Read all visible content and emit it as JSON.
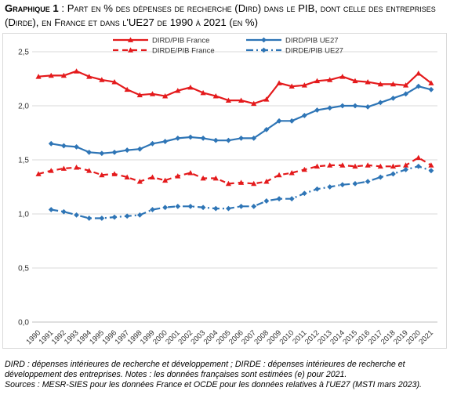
{
  "title": {
    "label": "Graphique 1",
    "separator": " : ",
    "text": "Part en % des dépenses de recherche (Dird) dans le PIB, dont celle des entreprises (Dirde), en France et dans l'UE27 de 1990 à 2021 (en %)"
  },
  "chart_data": {
    "type": "line",
    "x": [
      "1990",
      "1991",
      "1992",
      "1993",
      "1994",
      "1995",
      "1996",
      "1997",
      "1998",
      "1999",
      "2000",
      "2001",
      "2002",
      "2003",
      "2004",
      "2005",
      "2006",
      "2007",
      "2008",
      "2009",
      "2010",
      "2011",
      "2012",
      "2013",
      "2014",
      "2015",
      "2016",
      "2017",
      "2018",
      "2019",
      "2020",
      "2021"
    ],
    "ylim": [
      0,
      2.5
    ],
    "yticks": [
      "0,0",
      "0,5",
      "1,0",
      "1,5",
      "2,0",
      "2,5"
    ],
    "grid": true,
    "legend_position": "top",
    "series": [
      {
        "name": "DIRD/PIB France",
        "color": "#e41a1c",
        "style": "solid",
        "marker": "triangle",
        "values": [
          2.27,
          2.28,
          2.28,
          2.32,
          2.27,
          2.24,
          2.22,
          2.15,
          2.1,
          2.11,
          2.09,
          2.14,
          2.17,
          2.12,
          2.09,
          2.05,
          2.05,
          2.02,
          2.06,
          2.21,
          2.18,
          2.19,
          2.23,
          2.24,
          2.27,
          2.23,
          2.22,
          2.2,
          2.2,
          2.19,
          2.3,
          2.21
        ]
      },
      {
        "name": "DIRD/PIB UE27",
        "color": "#2e75b6",
        "style": "solid",
        "marker": "diamond",
        "values": [
          null,
          1.65,
          1.63,
          1.62,
          1.57,
          1.56,
          1.57,
          1.59,
          1.6,
          1.65,
          1.67,
          1.7,
          1.71,
          1.7,
          1.68,
          1.68,
          1.7,
          1.7,
          1.78,
          1.86,
          1.86,
          1.91,
          1.96,
          1.98,
          2.0,
          2.0,
          1.99,
          2.03,
          2.07,
          2.11,
          2.18,
          2.15
        ]
      },
      {
        "name": "DIRDE/PIB France",
        "color": "#e41a1c",
        "style": "dashed",
        "marker": "triangle",
        "values": [
          1.37,
          1.4,
          1.42,
          1.43,
          1.4,
          1.36,
          1.37,
          1.34,
          1.3,
          1.34,
          1.31,
          1.35,
          1.38,
          1.33,
          1.33,
          1.28,
          1.29,
          1.28,
          1.3,
          1.36,
          1.38,
          1.41,
          1.44,
          1.45,
          1.45,
          1.44,
          1.45,
          1.44,
          1.44,
          1.45,
          1.52,
          1.45
        ]
      },
      {
        "name": "DIRDE/PIB UE27",
        "color": "#2e75b6",
        "style": "dashdot",
        "marker": "diamond",
        "values": [
          null,
          1.04,
          1.02,
          0.99,
          0.96,
          0.96,
          0.97,
          0.98,
          0.99,
          1.04,
          1.06,
          1.07,
          1.07,
          1.06,
          1.05,
          1.05,
          1.07,
          1.07,
          1.12,
          1.14,
          1.14,
          1.19,
          1.23,
          1.25,
          1.27,
          1.28,
          1.3,
          1.34,
          1.37,
          1.41,
          1.44,
          1.4
        ]
      }
    ]
  },
  "notes": {
    "line1": "DIRD : dépenses intérieures de recherche et développement ; DIRDE : dépenses intérieures de recherche et développement des entreprises. Notes : les données françaises sont estimées (e) pour 2021.",
    "line2": "Sources : MESR-SIES pour les données France et OCDE pour les données relatives à l'UE27 (MSTI mars 2023)."
  }
}
